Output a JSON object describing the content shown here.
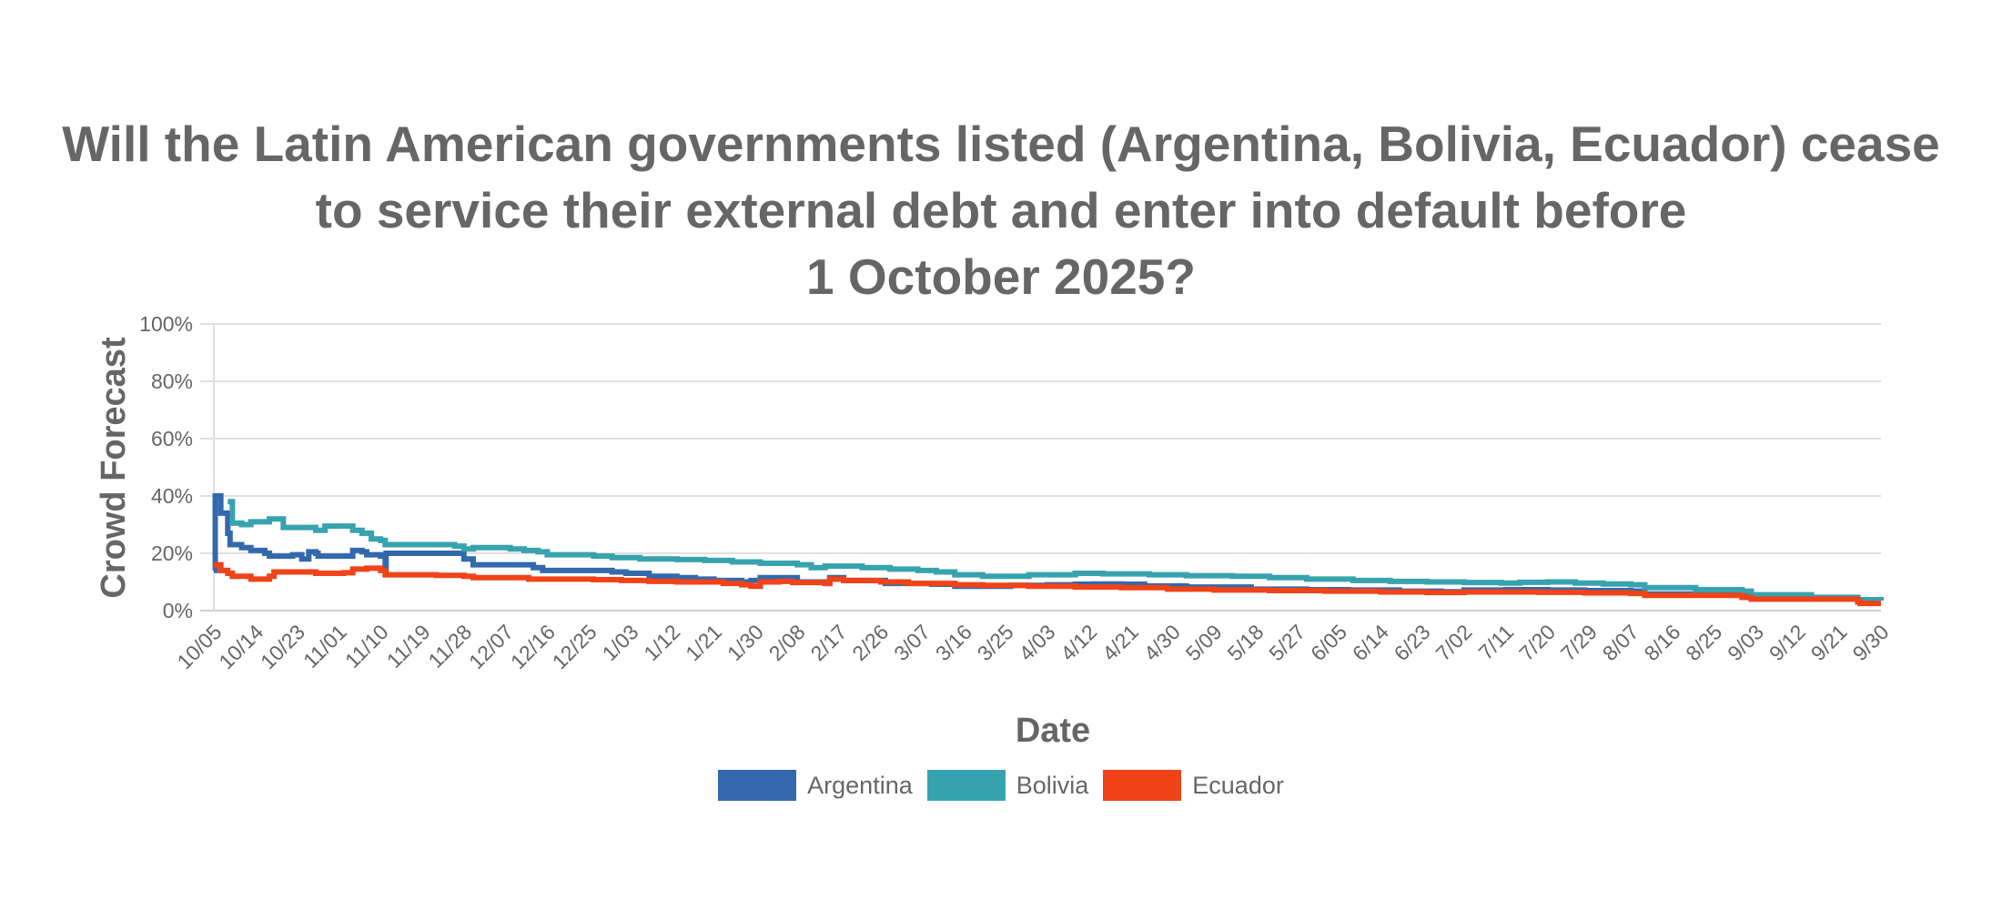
{
  "chart_data": {
    "type": "line",
    "step": true,
    "title": "Will the Latin American governments listed (Argentina, Bolivia, Ecuador) cease to service their external debt and enter into default before 1 October 2025?",
    "title_lines": [
      "Will the Latin American governments listed (Argentina, Bolivia, Ecuador) cease",
      "to service their external debt and enter into default before",
      "1 October 2025?"
    ],
    "xlabel": "Date",
    "ylabel": "Crowd Forecast",
    "ylim": [
      0,
      100
    ],
    "yticks": [
      "0%",
      "20%",
      "40%",
      "60%",
      "80%",
      "100%"
    ],
    "ytick_values": [
      0,
      20,
      40,
      60,
      80,
      100
    ],
    "xlim_days": [
      0,
      360
    ],
    "xticks": [
      "10/05",
      "10/14",
      "10/23",
      "11/01",
      "11/10",
      "11/19",
      "11/28",
      "12/07",
      "12/16",
      "12/25",
      "1/03",
      "1/12",
      "1/21",
      "1/30",
      "2/08",
      "2/17",
      "2/26",
      "3/07",
      "3/16",
      "3/25",
      "4/03",
      "4/12",
      "4/21",
      "4/30",
      "5/09",
      "5/18",
      "5/27",
      "6/05",
      "6/14",
      "6/23",
      "7/02",
      "7/11",
      "7/20",
      "7/29",
      "8/07",
      "8/16",
      "8/25",
      "9/03",
      "9/12",
      "9/21",
      "9/30"
    ],
    "xtick_interval_days": 9,
    "grid": true,
    "legend_position": "bottom",
    "series": [
      {
        "name": "Argentina",
        "color": "#3369ac",
        "points": [
          [
            0,
            14
          ],
          [
            0.3,
            40
          ],
          [
            1.5,
            40
          ],
          [
            1.5,
            34
          ],
          [
            2.5,
            34
          ],
          [
            3,
            27
          ],
          [
            3.5,
            23
          ],
          [
            6,
            22
          ],
          [
            8,
            21
          ],
          [
            11,
            20
          ],
          [
            12,
            19
          ],
          [
            16,
            19
          ],
          [
            17,
            19.5
          ],
          [
            19,
            18
          ],
          [
            20,
            18
          ],
          [
            20.5,
            20.5
          ],
          [
            22,
            20
          ],
          [
            22.5,
            19
          ],
          [
            29,
            19
          ],
          [
            30,
            21
          ],
          [
            32,
            20.5
          ],
          [
            33,
            19.5
          ],
          [
            36,
            19
          ],
          [
            37,
            14
          ],
          [
            37.2,
            20
          ],
          [
            52,
            20
          ],
          [
            54,
            18
          ],
          [
            56,
            16
          ],
          [
            65,
            16
          ],
          [
            69,
            15
          ],
          [
            71,
            14
          ],
          [
            80,
            14
          ],
          [
            86,
            13.5
          ],
          [
            89,
            13
          ],
          [
            94,
            12
          ],
          [
            100,
            11.5
          ],
          [
            104,
            11
          ],
          [
            108,
            10.5
          ],
          [
            114,
            10
          ],
          [
            116,
            10.5
          ],
          [
            118,
            11.5
          ],
          [
            125,
            11.5
          ],
          [
            126,
            10
          ],
          [
            132,
            9.5
          ],
          [
            133,
            11.5
          ],
          [
            136,
            10.5
          ],
          [
            144,
            10.5
          ],
          [
            145,
            9.5
          ],
          [
            155,
            9.2
          ],
          [
            160,
            8.5
          ],
          [
            165,
            8.5
          ],
          [
            168,
            8.5
          ],
          [
            172,
            8.8
          ],
          [
            180,
            9
          ],
          [
            186,
            9.2
          ],
          [
            190,
            9.3
          ],
          [
            196,
            9.2
          ],
          [
            201,
            8.6
          ],
          [
            210,
            8.2
          ],
          [
            224,
            7.5
          ],
          [
            236,
            7.3
          ],
          [
            245,
            7.2
          ],
          [
            256,
            6.8
          ],
          [
            265,
            6.6
          ],
          [
            270,
            7.2
          ],
          [
            279,
            7.3
          ],
          [
            288,
            7.2
          ],
          [
            296,
            7
          ],
          [
            306,
            6.8
          ],
          [
            309,
            5.8
          ],
          [
            330,
            5
          ],
          [
            332,
            4.6
          ],
          [
            355,
            3.6
          ],
          [
            355.5,
            2.8
          ],
          [
            360,
            2.8
          ]
        ]
      },
      {
        "name": "Bolivia",
        "color": "#37a3ae",
        "points": [
          [
            3,
            38
          ],
          [
            3.5,
            38
          ],
          [
            4,
            30.5
          ],
          [
            6,
            30
          ],
          [
            8,
            31
          ],
          [
            12,
            32
          ],
          [
            14,
            32
          ],
          [
            15,
            29
          ],
          [
            20,
            29
          ],
          [
            22,
            28
          ],
          [
            24,
            29.5
          ],
          [
            28,
            29.5
          ],
          [
            30,
            28
          ],
          [
            32,
            27
          ],
          [
            34,
            25
          ],
          [
            36,
            24.5
          ],
          [
            37,
            23
          ],
          [
            52,
            22.5
          ],
          [
            54,
            21.5
          ],
          [
            56,
            22
          ],
          [
            64,
            21.5
          ],
          [
            67,
            21
          ],
          [
            70,
            20.5
          ],
          [
            72,
            19.5
          ],
          [
            82,
            19
          ],
          [
            86,
            18.5
          ],
          [
            89,
            18.5
          ],
          [
            92,
            18
          ],
          [
            100,
            17.8
          ],
          [
            106,
            17.5
          ],
          [
            112,
            17
          ],
          [
            118,
            16.5
          ],
          [
            126,
            16
          ],
          [
            129,
            15
          ],
          [
            132,
            15.5
          ],
          [
            140,
            15
          ],
          [
            146,
            14.5
          ],
          [
            152,
            14
          ],
          [
            156,
            13.5
          ],
          [
            160,
            12.5
          ],
          [
            166,
            12
          ],
          [
            172,
            12
          ],
          [
            176,
            12.5
          ],
          [
            182,
            12.5
          ],
          [
            186,
            13
          ],
          [
            192,
            12.8
          ],
          [
            202,
            12.5
          ],
          [
            210,
            12.2
          ],
          [
            220,
            12
          ],
          [
            228,
            11.5
          ],
          [
            236,
            11
          ],
          [
            246,
            10.5
          ],
          [
            254,
            10.2
          ],
          [
            262,
            10
          ],
          [
            270,
            9.8
          ],
          [
            278,
            9.6
          ],
          [
            282,
            9.9
          ],
          [
            288,
            10
          ],
          [
            294,
            9.6
          ],
          [
            300,
            9.3
          ],
          [
            306,
            9
          ],
          [
            309,
            8
          ],
          [
            320,
            7.3
          ],
          [
            330,
            6.8
          ],
          [
            332,
            5.5
          ],
          [
            345,
            4.5
          ],
          [
            355,
            3.8
          ],
          [
            360,
            3.5
          ]
        ]
      },
      {
        "name": "Ecuador",
        "color": "#f04318",
        "points": [
          [
            0,
            16
          ],
          [
            1,
            16
          ],
          [
            1.5,
            14
          ],
          [
            3,
            13
          ],
          [
            4,
            12
          ],
          [
            7,
            12
          ],
          [
            8,
            11
          ],
          [
            10,
            11
          ],
          [
            12,
            12
          ],
          [
            13,
            13.5
          ],
          [
            16,
            13.5
          ],
          [
            22,
            13
          ],
          [
            28,
            13.2
          ],
          [
            30,
            14.5
          ],
          [
            33,
            14.8
          ],
          [
            36,
            14
          ],
          [
            37,
            12.5
          ],
          [
            48,
            12.3
          ],
          [
            54,
            12
          ],
          [
            56,
            11.5
          ],
          [
            64,
            11.5
          ],
          [
            68,
            11
          ],
          [
            76,
            11
          ],
          [
            82,
            10.8
          ],
          [
            88,
            10.5
          ],
          [
            94,
            10.2
          ],
          [
            100,
            10
          ],
          [
            110,
            9.5
          ],
          [
            114,
            9
          ],
          [
            116,
            8.5
          ],
          [
            118,
            10
          ],
          [
            122,
            10.2
          ],
          [
            125,
            9.8
          ],
          [
            132,
            9.5
          ],
          [
            133,
            11
          ],
          [
            136,
            10.5
          ],
          [
            144,
            10
          ],
          [
            150,
            9.5
          ],
          [
            160,
            9
          ],
          [
            166,
            8.8
          ],
          [
            176,
            8.5
          ],
          [
            186,
            8.2
          ],
          [
            196,
            8
          ],
          [
            206,
            7.5
          ],
          [
            216,
            7.2
          ],
          [
            228,
            7
          ],
          [
            240,
            6.8
          ],
          [
            252,
            6.5
          ],
          [
            262,
            6.3
          ],
          [
            270,
            6.5
          ],
          [
            286,
            6.4
          ],
          [
            296,
            6.2
          ],
          [
            306,
            6
          ],
          [
            309,
            5.3
          ],
          [
            330,
            4.6
          ],
          [
            332,
            4
          ],
          [
            355,
            3
          ],
          [
            355.5,
            2.5
          ],
          [
            360,
            2.5
          ]
        ]
      }
    ]
  },
  "legend": {
    "items": [
      {
        "label": "Argentina",
        "color": "#3369ac"
      },
      {
        "label": "Bolivia",
        "color": "#37a3ae"
      },
      {
        "label": "Ecuador",
        "color": "#f04318"
      }
    ]
  },
  "colors": {
    "text": "#666666",
    "grid": "#e0e0e0",
    "axis": "#d0d0d0"
  }
}
